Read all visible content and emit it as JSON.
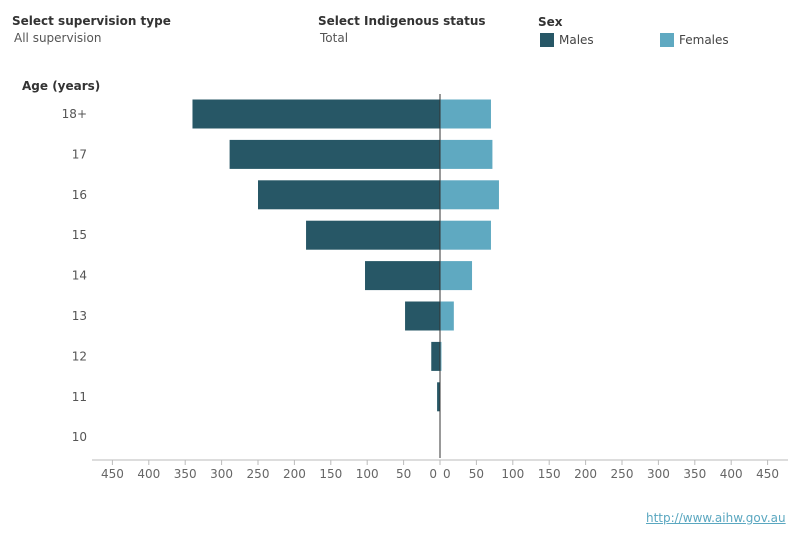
{
  "filters": {
    "supervision_label": "Select supervision type",
    "supervision_value": "All supervision",
    "indigenous_label": "Select Indigenous status",
    "indigenous_value": "Total"
  },
  "legend": {
    "title": "Sex",
    "males_label": "Males",
    "females_label": "Females"
  },
  "colors": {
    "males": "#275766",
    "females": "#5fa9c1",
    "axis": "#333333",
    "grid": "#e8e8e8"
  },
  "source_link": "http://www.aihw.gov.au",
  "chart_data": {
    "type": "bar",
    "orientation": "horizontal",
    "ylabel": "Age (years)",
    "categories": [
      "18+",
      "17",
      "16",
      "15",
      "14",
      "13",
      "12",
      "11",
      "10"
    ],
    "series": [
      {
        "name": "Males",
        "values": [
          340,
          289,
          250,
          184,
          103,
          48,
          12,
          4,
          0
        ]
      },
      {
        "name": "Females",
        "values": [
          70,
          72,
          81,
          70,
          44,
          19,
          2,
          0,
          0
        ]
      }
    ],
    "xlim_left": [
      0,
      450
    ],
    "xlim_right": [
      0,
      450
    ],
    "xticks_left": [
      "450",
      "400",
      "350",
      "300",
      "250",
      "200",
      "150",
      "100",
      "50",
      "0"
    ],
    "xticks_right": [
      "0",
      "50",
      "100",
      "150",
      "200",
      "250",
      "300",
      "350",
      "400",
      "450"
    ],
    "grid": false
  }
}
